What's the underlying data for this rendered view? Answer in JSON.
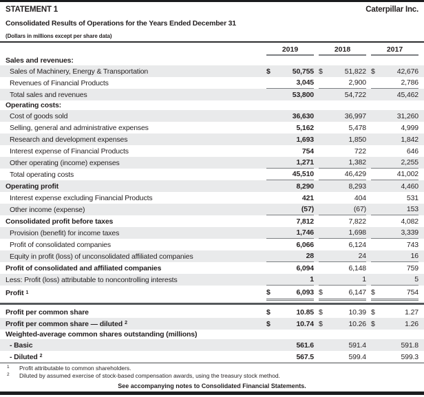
{
  "header": {
    "statement_label": "STATEMENT 1",
    "company": "Caterpillar Inc.",
    "title": "Consolidated Results of Operations for the Years Ended December 31",
    "subtitle": "(Dollars in millions except per share data)"
  },
  "columns": [
    "2019",
    "2018",
    "2017"
  ],
  "main_rows": [
    {
      "label": "Sales and revenues:",
      "type": "section"
    },
    {
      "label": "Sales of Machinery, Energy & Transportation",
      "values": [
        "50,755",
        "51,822",
        "42,676"
      ],
      "dollar": true,
      "shaded": true,
      "indent": true
    },
    {
      "label": "Revenues of Financial Products",
      "values": [
        "3,045",
        "2,900",
        "2,786"
      ],
      "indent": true,
      "rule": "single"
    },
    {
      "label": "Total sales and revenues",
      "values": [
        "53,800",
        "54,722",
        "45,462"
      ],
      "shaded": true,
      "indent": true
    },
    {
      "label": "Operating costs:",
      "type": "section"
    },
    {
      "label": "Cost of goods sold",
      "values": [
        "36,630",
        "36,997",
        "31,260"
      ],
      "shaded": true,
      "indent": true
    },
    {
      "label": "Selling, general and administrative expenses",
      "values": [
        "5,162",
        "5,478",
        "4,999"
      ],
      "indent": true
    },
    {
      "label": "Research and development expenses",
      "values": [
        "1,693",
        "1,850",
        "1,842"
      ],
      "shaded": true,
      "indent": true
    },
    {
      "label": "Interest expense of Financial Products",
      "values": [
        "754",
        "722",
        "646"
      ],
      "indent": true
    },
    {
      "label": "Other operating (income) expenses",
      "values": [
        "1,271",
        "1,382",
        "2,255"
      ],
      "shaded": true,
      "indent": true,
      "rule": "single"
    },
    {
      "label": "Total operating costs",
      "values": [
        "45,510",
        "46,429",
        "41,002"
      ],
      "indent": true,
      "rule": "single"
    },
    {
      "label": "Operating profit",
      "values": [
        "8,290",
        "8,293",
        "4,460"
      ],
      "bold": true,
      "shaded": true
    },
    {
      "label": "Interest expense excluding Financial Products",
      "values": [
        "421",
        "404",
        "531"
      ],
      "indent": true
    },
    {
      "label": "Other income (expense)",
      "values": [
        "(57)",
        "(67)",
        "153"
      ],
      "shaded": true,
      "indent": true,
      "rule": "single"
    },
    {
      "label": "Consolidated profit before taxes",
      "values": [
        "7,812",
        "7,822",
        "4,082"
      ],
      "bold": true
    },
    {
      "label": "Provision (benefit) for income taxes",
      "values": [
        "1,746",
        "1,698",
        "3,339"
      ],
      "shaded": true,
      "indent": true,
      "rule": "single"
    },
    {
      "label": "Profit of consolidated companies",
      "values": [
        "6,066",
        "6,124",
        "743"
      ],
      "indent": true
    },
    {
      "label": "Equity in profit (loss) of unconsolidated affiliated companies",
      "values": [
        "28",
        "24",
        "16"
      ],
      "shaded": true,
      "indent": true,
      "rule": "single"
    },
    {
      "label": "Profit of consolidated and affiliated companies",
      "values": [
        "6,094",
        "6,148",
        "759"
      ],
      "bold": true
    },
    {
      "label": "Less: Profit (loss) attributable to noncontrolling interests",
      "values": [
        "1",
        "1",
        "5"
      ],
      "shaded": true,
      "rule": "single"
    },
    {
      "label": "Profit",
      "sup": "1",
      "values": [
        "6,093",
        "6,147",
        "754"
      ],
      "dollar": true,
      "bold": true,
      "rule": "double"
    }
  ],
  "per_share_rows": [
    {
      "label": "Profit per common share",
      "values": [
        "10.85",
        "10.39",
        "1.27"
      ],
      "dollar": true,
      "bold": true
    },
    {
      "label": "Profit per common share — diluted",
      "sup": "2",
      "values": [
        "10.74",
        "10.26",
        "1.26"
      ],
      "dollar": true,
      "bold": true,
      "shaded": true
    },
    {
      "label": "Weighted-average common shares outstanding (millions)",
      "type": "section"
    },
    {
      "label": "- Basic",
      "values": [
        "561.6",
        "591.4",
        "591.8"
      ],
      "bold": true,
      "shaded": true,
      "indent": true
    },
    {
      "label": "- Diluted",
      "sup": "2",
      "values": [
        "567.5",
        "599.4",
        "599.3"
      ],
      "bold": true,
      "indent": true
    }
  ],
  "footnotes": [
    {
      "marker": "1",
      "text": "Profit attributable to common shareholders."
    },
    {
      "marker": "2",
      "text": "Diluted by assumed exercise of stock-based compensation awards, using the treasury stock method."
    }
  ],
  "footer": {
    "note": "See accompanying notes to Consolidated Financial Statements."
  },
  "colors": {
    "shaded_row": "#e9eaeb",
    "rule_gray": "#7b7e81",
    "section_separator": "#55585b",
    "border_black": "#1b1c1e",
    "text": "#231f20"
  }
}
